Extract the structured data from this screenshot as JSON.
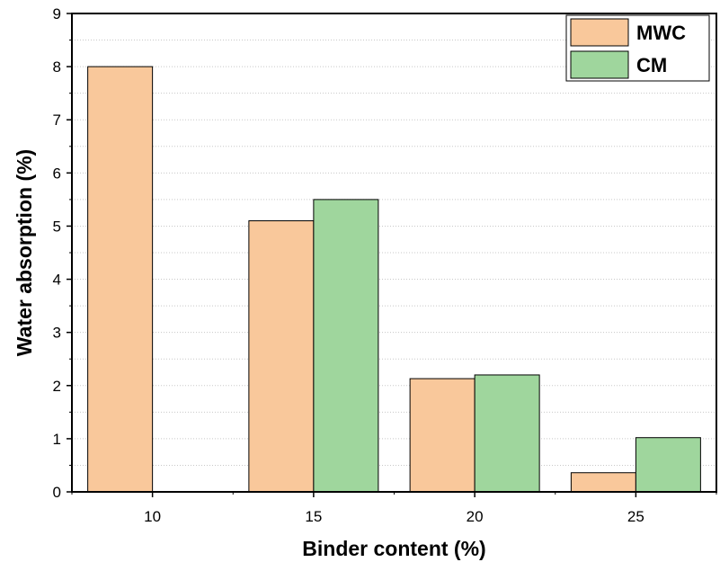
{
  "chart_data": {
    "type": "bar",
    "categories": [
      "10",
      "15",
      "20",
      "25"
    ],
    "series": [
      {
        "name": "MWC",
        "values": [
          8.0,
          5.1,
          2.13,
          0.36
        ],
        "color": "#F9C89B"
      },
      {
        "name": "CM",
        "values": [
          null,
          5.5,
          2.2,
          1.02
        ],
        "color": "#9FD69D"
      }
    ],
    "xlabel": "Binder content (%)",
    "ylabel": "Water absorption (%)",
    "ylim": [
      0,
      9
    ],
    "yticks": [
      "0",
      "1",
      "2",
      "3",
      "4",
      "5",
      "6",
      "7",
      "8",
      "9"
    ],
    "grid": true,
    "legend_position": "top-right"
  }
}
